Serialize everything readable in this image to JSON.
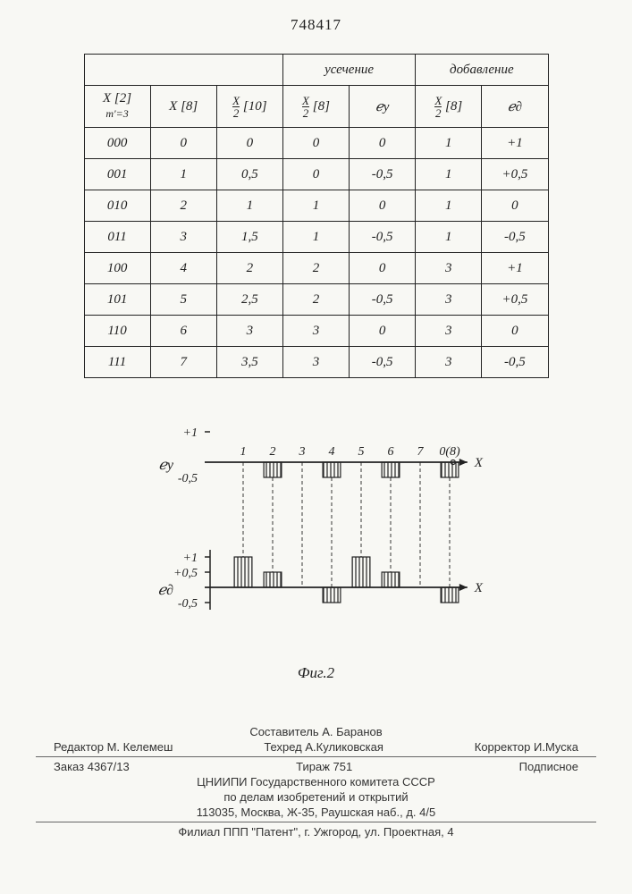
{
  "doc_number": "748417",
  "table": {
    "group_headers": [
      "",
      "усечение",
      "добавление"
    ],
    "headers": {
      "h1_top": "X [2]",
      "h1_bot": "m'=3",
      "h2": "X [8]",
      "h3_frac_num": "X",
      "h3_frac_den": "2",
      "h3_suffix": "[10]",
      "h4_frac_num": "X",
      "h4_frac_den": "2",
      "h4_suffix": "[8]",
      "h5": "ℯу",
      "h6_frac_num": "X",
      "h6_frac_den": "2",
      "h6_suffix": "[8]",
      "h7": "ℯ∂"
    },
    "rows": [
      [
        "000",
        "0",
        "0",
        "0",
        "0",
        "1",
        "+1"
      ],
      [
        "001",
        "1",
        "0,5",
        "0",
        "-0,5",
        "1",
        "+0,5"
      ],
      [
        "010",
        "2",
        "1",
        "1",
        "0",
        "1",
        "0"
      ],
      [
        "011",
        "3",
        "1,5",
        "1",
        "-0,5",
        "1",
        "-0,5"
      ],
      [
        "100",
        "4",
        "2",
        "2",
        "0",
        "3",
        "+1"
      ],
      [
        "101",
        "5",
        "2,5",
        "2",
        "-0,5",
        "3",
        "+0,5"
      ],
      [
        "110",
        "6",
        "3",
        "3",
        "0",
        "3",
        "0"
      ],
      [
        "111",
        "7",
        "3,5",
        "3",
        "-0,5",
        "3",
        "-0,5"
      ]
    ]
  },
  "figure": {
    "caption": "Фиг.2",
    "top_chart": {
      "x_labels": [
        "1",
        "2",
        "3",
        "4",
        "5",
        "6",
        "7",
        "0(8)"
      ],
      "y_labels": [
        "+1",
        "-0,5"
      ],
      "axis_var_label": "X",
      "y_axis_left_label": "ℯу",
      "bars": [
        {
          "x": 1,
          "y": 0
        },
        {
          "x": 2,
          "y": -0.5
        },
        {
          "x": 3,
          "y": 0
        },
        {
          "x": 4,
          "y": -0.5
        },
        {
          "x": 5,
          "y": 0
        },
        {
          "x": 6,
          "y": -0.5
        },
        {
          "x": 7,
          "y": 0
        },
        {
          "x": 8,
          "y": -0.5
        }
      ]
    },
    "bottom_chart": {
      "y_labels": [
        "+1",
        "+0,5",
        "-0,5"
      ],
      "axis_var_label": "X",
      "y_axis_left_label": "ℯ∂",
      "bars": [
        {
          "x": 1,
          "y": 1
        },
        {
          "x": 2,
          "y": 0.5
        },
        {
          "x": 3,
          "y": 0
        },
        {
          "x": 4,
          "y": -0.5
        },
        {
          "x": 5,
          "y": 1
        },
        {
          "x": 6,
          "y": 0.5
        },
        {
          "x": 7,
          "y": 0
        },
        {
          "x": 8,
          "y": -0.5
        }
      ]
    },
    "colors": {
      "stroke": "#222",
      "hatch": "#222",
      "bg": "#f8f8f4"
    },
    "bar_width": 0.6
  },
  "footer": {
    "composer_label": "Составитель",
    "composer": "А. Баранов",
    "editor_label": "Редактор",
    "editor": "М. Келемеш",
    "techred_label": "Техред",
    "techred": "А.Куликовская",
    "corrector_label": "Корректор",
    "corrector": "И.Муска",
    "order": "Заказ 4367/13",
    "tirazh": "Тираж 751",
    "podpisnoe": "Подписное",
    "org1": "ЦНИИПИ Государственного комитета СССР",
    "org2": "по делам изобретений и открытий",
    "addr1": "113035, Москва, Ж-35, Раушская наб., д. 4/5",
    "addr2": "Филиал ППП \"Патент\", г. Ужгород, ул. Проектная, 4"
  }
}
